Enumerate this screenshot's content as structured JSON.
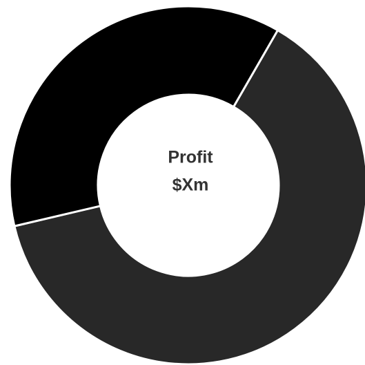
{
  "chart_data": {
    "type": "donut",
    "center_text": [
      "Profit",
      "$Xm"
    ],
    "values": [
      63,
      37
    ],
    "colors": [
      "#282828",
      "#000000"
    ]
  }
}
